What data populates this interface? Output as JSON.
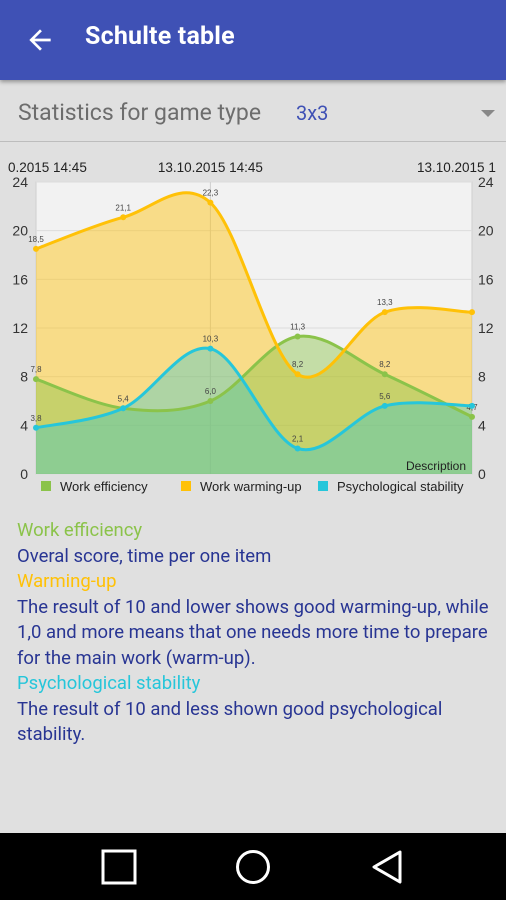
{
  "appbar": {
    "title": "Schulte table",
    "back_icon": "arrow-back-icon"
  },
  "selector": {
    "label": "Statistics for game type",
    "value": "3x3"
  },
  "chart_data": {
    "type": "line",
    "top_labels": [
      "0.2015 14:45",
      "13.10.2015 14:45",
      "13.10.2015 1"
    ],
    "description": "Description",
    "ylim": [
      0,
      24
    ],
    "y_ticks": [
      "0",
      "4",
      "8",
      "12",
      "16",
      "20",
      "24"
    ],
    "x": [
      0,
      1,
      2,
      3,
      4,
      5
    ],
    "series": [
      {
        "name": "Work efficiency",
        "color": "#8bc34a",
        "values": [
          7.8,
          5.4,
          6.0,
          11.3,
          8.2,
          4.7
        ],
        "labels": [
          "7,8",
          "5,4",
          "6,0",
          "11,3",
          "8,2",
          "4,7"
        ]
      },
      {
        "name": "Work warming-up",
        "color": "#ffc107",
        "values": [
          18.5,
          21.1,
          22.3,
          8.2,
          13.3,
          13.3
        ],
        "labels": [
          "18,5",
          "21,1",
          "22,3",
          "8,2",
          "13,3",
          ""
        ]
      },
      {
        "name": "Psychological stability",
        "color": "#26c6da",
        "values": [
          3.8,
          5.4,
          10.3,
          2.1,
          5.6,
          5.6
        ],
        "labels": [
          "3,8",
          "",
          "10,3",
          "2,1",
          "5,6",
          ""
        ]
      }
    ],
    "legend_position": "bottom"
  },
  "description": {
    "h1": "Work efficiency",
    "t1": "Overal score, time per one item",
    "h2": "Warming-up",
    "t2": "The result of 10 and lower shows good warming-up, while 1,0 and more means that one needs more time to prepare for the main work (warm-up).",
    "h3": "Psychological stability",
    "t3": "The result of 10 and less shown good psychological stability."
  },
  "navbar": {
    "icons": [
      "square-recents-icon",
      "circle-home-icon",
      "triangle-back-icon"
    ]
  }
}
